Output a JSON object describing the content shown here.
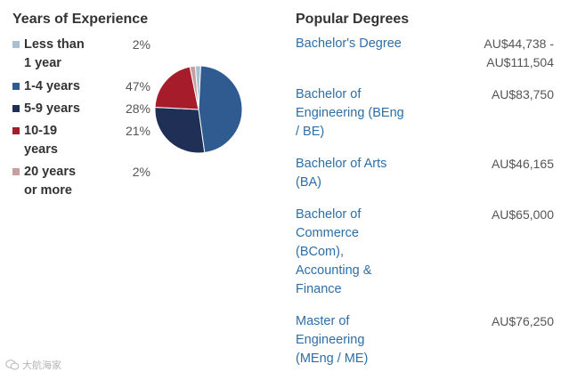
{
  "experience": {
    "title": "Years of Experience",
    "items": [
      {
        "label_lines": [
          "Less than",
          "1 year"
        ],
        "percent": "2%",
        "color": "#a9bfd2"
      },
      {
        "label_lines": [
          "1-4 years"
        ],
        "percent": "47%",
        "color": "#2f5b91"
      },
      {
        "label_lines": [
          "5-9 years"
        ],
        "percent": "28%",
        "color": "#1f2f55"
      },
      {
        "label_lines": [
          "10-19",
          "years"
        ],
        "percent": "21%",
        "color": "#a61c2a"
      },
      {
        "label_lines": [
          "20 years",
          "or more"
        ],
        "percent": "2%",
        "color": "#c79fa2"
      }
    ]
  },
  "chart_data": {
    "type": "pie",
    "categories": [
      "Less than 1 year",
      "1-4 years",
      "5-9 years",
      "10-19 years",
      "20 years or more"
    ],
    "values": [
      2,
      47,
      28,
      21,
      2
    ],
    "colors": [
      "#a9bfd2",
      "#2f5b91",
      "#1f2f55",
      "#a61c2a",
      "#c79fa2"
    ]
  },
  "degrees": {
    "title": "Popular Degrees",
    "items": [
      {
        "name_lines": [
          "Bachelor's Degree"
        ],
        "salary_lines": [
          "AU$44,738 -",
          "AU$111,504"
        ]
      },
      {
        "name_lines": [
          "Bachelor of",
          "Engineering (BEng",
          "/ BE)"
        ],
        "salary_lines": [
          "AU$83,750"
        ]
      },
      {
        "name_lines": [
          "Bachelor of Arts",
          "(BA)"
        ],
        "salary_lines": [
          "AU$46,165"
        ]
      },
      {
        "name_lines": [
          "Bachelor of",
          "Commerce",
          "(BCom),",
          "Accounting &",
          "Finance"
        ],
        "salary_lines": [
          "AU$65,000"
        ]
      },
      {
        "name_lines": [
          "Master of",
          "Engineering",
          "(MEng / ME)"
        ],
        "salary_lines": [
          "AU$76,250"
        ]
      }
    ]
  },
  "watermark": {
    "text": "大航海家",
    "icon": "wechat-icon"
  }
}
